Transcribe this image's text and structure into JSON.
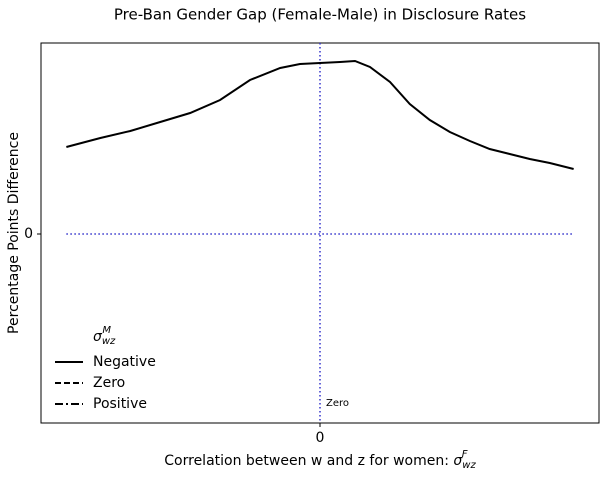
{
  "chart_data": {
    "type": "line",
    "title": "Pre-Ban Gender Gap (Female-Male) in Disclosure Rates",
    "xlabel": {
      "text": "Correlation between w and z for women: ",
      "symbol": "σ",
      "sub": "wz",
      "sup": "F"
    },
    "ylabel": "Percentage Points Difference",
    "x": [
      -1.0,
      -0.866,
      -0.748,
      -0.63,
      -0.512,
      -0.394,
      -0.276,
      -0.157,
      -0.079,
      0,
      0.079,
      0.138,
      0.197,
      0.276,
      0.354,
      0.433,
      0.512,
      0.591,
      0.669,
      0.748,
      0.827,
      0.906,
      1.0
    ],
    "series": [
      {
        "name": "Negative",
        "color": "#000000",
        "dash": "solid",
        "values": [
          0.87,
          0.96,
          1.03,
          1.12,
          1.21,
          1.34,
          1.54,
          1.66,
          1.7,
          1.71,
          1.72,
          1.73,
          1.67,
          1.52,
          1.3,
          1.14,
          1.02,
          0.93,
          0.85,
          0.8,
          0.75,
          0.71,
          0.65
        ]
      },
      {
        "name": "Zero",
        "color": "#000000",
        "dash": "dashed",
        "values": [
          null,
          null,
          null,
          null,
          null,
          null,
          null,
          null,
          null,
          null,
          null,
          null,
          null,
          null,
          null,
          null,
          null,
          null,
          null,
          null,
          null,
          null,
          null
        ]
      },
      {
        "name": "Positive",
        "color": "#000000",
        "dash": "dashdot",
        "values": [
          null,
          null,
          null,
          null,
          null,
          null,
          null,
          null,
          null,
          null,
          null,
          null,
          null,
          null,
          null,
          null,
          null,
          null,
          null,
          null,
          null,
          null,
          null
        ]
      }
    ],
    "legend_title": {
      "symbol": "σ",
      "sub": "wz",
      "sup": "M"
    },
    "legend": "lower left",
    "reference_lines": {
      "color": "#3333cc",
      "y": 0,
      "x": 0
    },
    "annotation": "Zero",
    "xlim": [
      -1.1,
      1.1
    ],
    "xticks": [
      0
    ],
    "ylim": [
      -1.89,
      1.91
    ],
    "yticks": [
      0
    ]
  }
}
